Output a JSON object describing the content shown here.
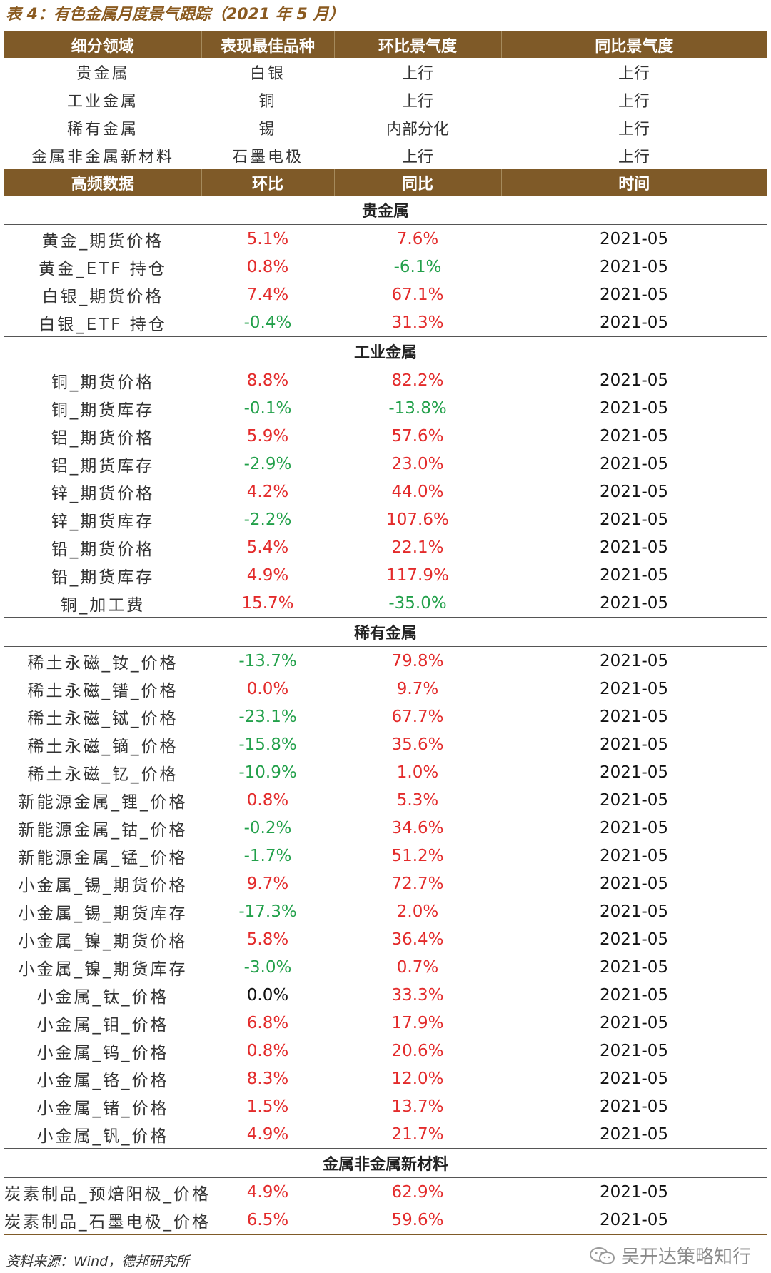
{
  "title": "表 4：有色金属月度景气跟踪（2021 年 5 月）",
  "header1": [
    "细分领域",
    "表现最佳品种",
    "环比景气度",
    "同比景气度"
  ],
  "summary": [
    {
      "sector": "贵金属",
      "best": "白银",
      "mom": "上行",
      "yoy": "上行",
      "mom_tone": "up",
      "yoy_tone": "up"
    },
    {
      "sector": "工业金属",
      "best": "铜",
      "mom": "上行",
      "yoy": "上行",
      "mom_tone": "up",
      "yoy_tone": "up"
    },
    {
      "sector": "稀有金属",
      "best": "锡",
      "mom": "内部分化",
      "yoy": "上行",
      "mom_tone": "mixed",
      "yoy_tone": "up"
    },
    {
      "sector": "金属非金属新材料",
      "best": "石墨电极",
      "mom": "上行",
      "yoy": "上行",
      "mom_tone": "up",
      "yoy_tone": "up"
    }
  ],
  "header2": [
    "高频数据",
    "环比",
    "同比",
    "时间"
  ],
  "sections": [
    {
      "name": "贵金属",
      "rows": [
        {
          "item": "黄金_期货价格",
          "mom": "5.1%",
          "yoy": "7.6%",
          "date": "2021-05"
        },
        {
          "item": "黄金_ETF 持仓",
          "mom": "0.8%",
          "yoy": "-6.1%",
          "date": "2021-05"
        },
        {
          "item": "白银_期货价格",
          "mom": "7.4%",
          "yoy": "67.1%",
          "date": "2021-05"
        },
        {
          "item": "白银_ETF 持仓",
          "mom": "-0.4%",
          "yoy": "31.3%",
          "date": "2021-05"
        }
      ]
    },
    {
      "name": "工业金属",
      "rows": [
        {
          "item": "铜_期货价格",
          "mom": "8.8%",
          "yoy": "82.2%",
          "date": "2021-05"
        },
        {
          "item": "铜_期货库存",
          "mom": "-0.1%",
          "yoy": "-13.8%",
          "date": "2021-05"
        },
        {
          "item": "铝_期货价格",
          "mom": "5.9%",
          "yoy": "57.6%",
          "date": "2021-05"
        },
        {
          "item": "铝_期货库存",
          "mom": "-2.9%",
          "yoy": "23.0%",
          "date": "2021-05"
        },
        {
          "item": "锌_期货价格",
          "mom": "4.2%",
          "yoy": "44.0%",
          "date": "2021-05"
        },
        {
          "item": "锌_期货库存",
          "mom": "-2.2%",
          "yoy": "107.6%",
          "date": "2021-05"
        },
        {
          "item": "铅_期货价格",
          "mom": "5.4%",
          "yoy": "22.1%",
          "date": "2021-05"
        },
        {
          "item": "铅_期货库存",
          "mom": "4.9%",
          "yoy": "117.9%",
          "date": "2021-05"
        },
        {
          "item": "铜_加工费",
          "mom": "15.7%",
          "yoy": "-35.0%",
          "date": "2021-05"
        }
      ]
    },
    {
      "name": "稀有金属",
      "rows": [
        {
          "item": "稀土永磁_钕_价格",
          "mom": "-13.7%",
          "yoy": "79.8%",
          "date": "2021-05"
        },
        {
          "item": "稀土永磁_镨_价格",
          "mom": "0.0%",
          "yoy": "9.7%",
          "date": "2021-05"
        },
        {
          "item": "稀土永磁_铽_价格",
          "mom": "-23.1%",
          "yoy": "67.7%",
          "date": "2021-05"
        },
        {
          "item": "稀土永磁_镝_价格",
          "mom": "-15.8%",
          "yoy": "35.6%",
          "date": "2021-05"
        },
        {
          "item": "稀土永磁_钇_价格",
          "mom": "-10.9%",
          "yoy": "1.0%",
          "date": "2021-05"
        },
        {
          "item": "新能源金属_锂_价格",
          "mom": "0.8%",
          "yoy": "5.3%",
          "date": "2021-05"
        },
        {
          "item": "新能源金属_钴_价格",
          "mom": "-0.2%",
          "yoy": "34.6%",
          "date": "2021-05"
        },
        {
          "item": "新能源金属_锰_价格",
          "mom": "-1.7%",
          "yoy": "51.2%",
          "date": "2021-05"
        },
        {
          "item": "小金属_锡_期货价格",
          "mom": "9.7%",
          "yoy": "72.7%",
          "date": "2021-05"
        },
        {
          "item": "小金属_锡_期货库存",
          "mom": "-17.3%",
          "yoy": "2.0%",
          "date": "2021-05"
        },
        {
          "item": "小金属_镍_期货价格",
          "mom": "5.8%",
          "yoy": "36.4%",
          "date": "2021-05"
        },
        {
          "item": "小金属_镍_期货库存",
          "mom": "-3.0%",
          "yoy": "0.7%",
          "date": "2021-05"
        },
        {
          "item": "小金属_钛_价格",
          "mom": "0.0%",
          "yoy": "33.3%",
          "date": "2021-05",
          "mom_tone": "neutral"
        },
        {
          "item": "小金属_钼_价格",
          "mom": "6.8%",
          "yoy": "17.9%",
          "date": "2021-05"
        },
        {
          "item": "小金属_钨_价格",
          "mom": "0.8%",
          "yoy": "20.6%",
          "date": "2021-05"
        },
        {
          "item": "小金属_铬_价格",
          "mom": "8.3%",
          "yoy": "12.0%",
          "date": "2021-05"
        },
        {
          "item": "小金属_锗_价格",
          "mom": "1.5%",
          "yoy": "13.7%",
          "date": "2021-05"
        },
        {
          "item": "小金属_钒_价格",
          "mom": "4.9%",
          "yoy": "21.7%",
          "date": "2021-05"
        }
      ]
    },
    {
      "name": "金属非金属新材料",
      "rows": [
        {
          "item": "炭素制品_预焙阳极_价格",
          "mom": "4.9%",
          "yoy": "62.9%",
          "date": "2021-05"
        },
        {
          "item": "炭素制品_石墨电极_价格",
          "mom": "6.5%",
          "yoy": "59.6%",
          "date": "2021-05"
        }
      ]
    }
  ],
  "footer": "资料来源：Wind，德邦研究所",
  "watermark": "吴开达策略知行",
  "colors": {
    "header_bg": "#7f5a28",
    "positive": "#e32b2b",
    "negative": "#22a04a",
    "mixed": "#9a9a9a",
    "title": "#8a5a20"
  }
}
